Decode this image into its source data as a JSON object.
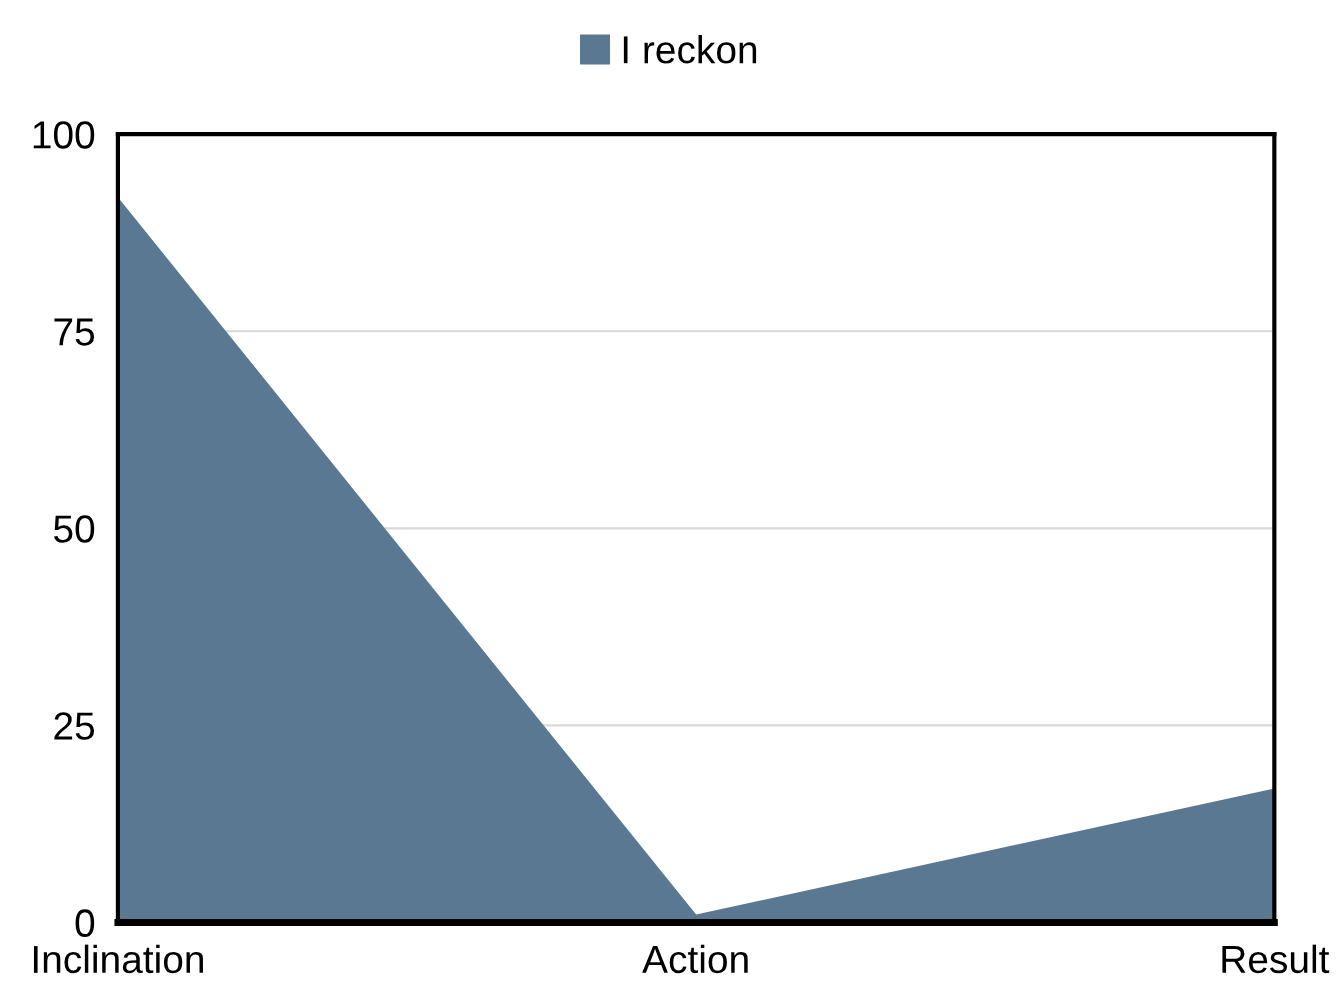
{
  "chart_data": {
    "type": "area",
    "categories": [
      "Inclination",
      "Action",
      "Result"
    ],
    "series": [
      {
        "name": "I reckon",
        "color": "#5a7891",
        "values": [
          92,
          1,
          17
        ]
      }
    ],
    "ylim": [
      0,
      100
    ],
    "yticks": [
      0,
      25,
      50,
      75,
      100
    ],
    "grid": "y",
    "legend": "top"
  }
}
